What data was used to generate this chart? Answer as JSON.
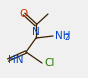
{
  "bg_color": "#f0f0f0",
  "bond_color": "#3a2000",
  "atom_colors": {
    "O": "#cc3300",
    "N": "#0044cc",
    "Cl": "#227700",
    "C": "#3a2000"
  },
  "figsize": [
    0.88,
    0.78
  ],
  "dpi": 100
}
